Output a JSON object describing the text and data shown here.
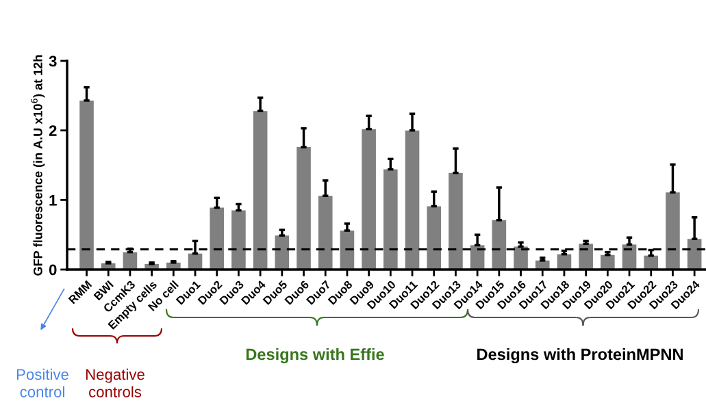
{
  "chart_data": {
    "type": "bar",
    "ylabel": "GFP fluorescence (in A.U x10$^{6}$) at 12h",
    "categories": [
      "RMM",
      "BWI",
      "CcmK3",
      "Empty cells",
      "No cell",
      "Duo1",
      "Duo2",
      "Duo3",
      "Duo4",
      "Duo5",
      "Duo6",
      "Duo7",
      "Duo8",
      "Duo9",
      "Duo10",
      "Duo11",
      "Duo12",
      "Duo13",
      "Duo14",
      "Duo15",
      "Duo16",
      "Duo17",
      "Duo18",
      "Duo19",
      "Duo20",
      "Duo21",
      "Duo22",
      "Duo23",
      "Duo24"
    ],
    "values": [
      2.43,
      0.09,
      0.25,
      0.08,
      0.1,
      0.23,
      0.89,
      0.85,
      2.28,
      0.49,
      1.76,
      1.06,
      0.56,
      2.02,
      1.44,
      2.0,
      0.91,
      1.39,
      0.35,
      0.71,
      0.33,
      0.13,
      0.22,
      0.37,
      0.21,
      0.36,
      0.2,
      1.11,
      0.44
    ],
    "errors": [
      [
        2.43,
        2.62
      ],
      [
        0.09,
        0.11
      ],
      [
        0.25,
        0.3
      ],
      [
        0.08,
        0.1
      ],
      [
        0.1,
        0.12
      ],
      [
        0.23,
        0.41
      ],
      [
        0.89,
        1.03
      ],
      [
        0.85,
        0.94
      ],
      [
        2.28,
        2.47
      ],
      [
        0.49,
        0.57
      ],
      [
        1.76,
        2.03
      ],
      [
        1.06,
        1.28
      ],
      [
        0.56,
        0.66
      ],
      [
        2.02,
        2.21
      ],
      [
        1.44,
        1.59
      ],
      [
        2.0,
        2.24
      ],
      [
        0.91,
        1.12
      ],
      [
        1.39,
        1.74
      ],
      [
        0.35,
        0.5
      ],
      [
        0.71,
        1.18
      ],
      [
        0.33,
        0.39
      ],
      [
        0.13,
        0.17
      ],
      [
        0.22,
        0.27
      ],
      [
        0.37,
        0.41
      ],
      [
        0.21,
        0.25
      ],
      [
        0.36,
        0.46
      ],
      [
        0.2,
        0.28
      ],
      [
        1.11,
        1.51
      ],
      [
        0.44,
        0.75
      ]
    ],
    "color": "#808080",
    "ylim": [
      0,
      3
    ],
    "yticks": [
      0,
      1,
      2,
      3
    ],
    "ref_lines": [
      {
        "axis": "y",
        "value": 0.29,
        "line_style": "dashed",
        "color": "#000000"
      }
    ],
    "annotations": [
      "Positive control",
      "Negative controls",
      "Designs with Effie",
      "Designs with ProteinMPNN"
    ]
  }
}
